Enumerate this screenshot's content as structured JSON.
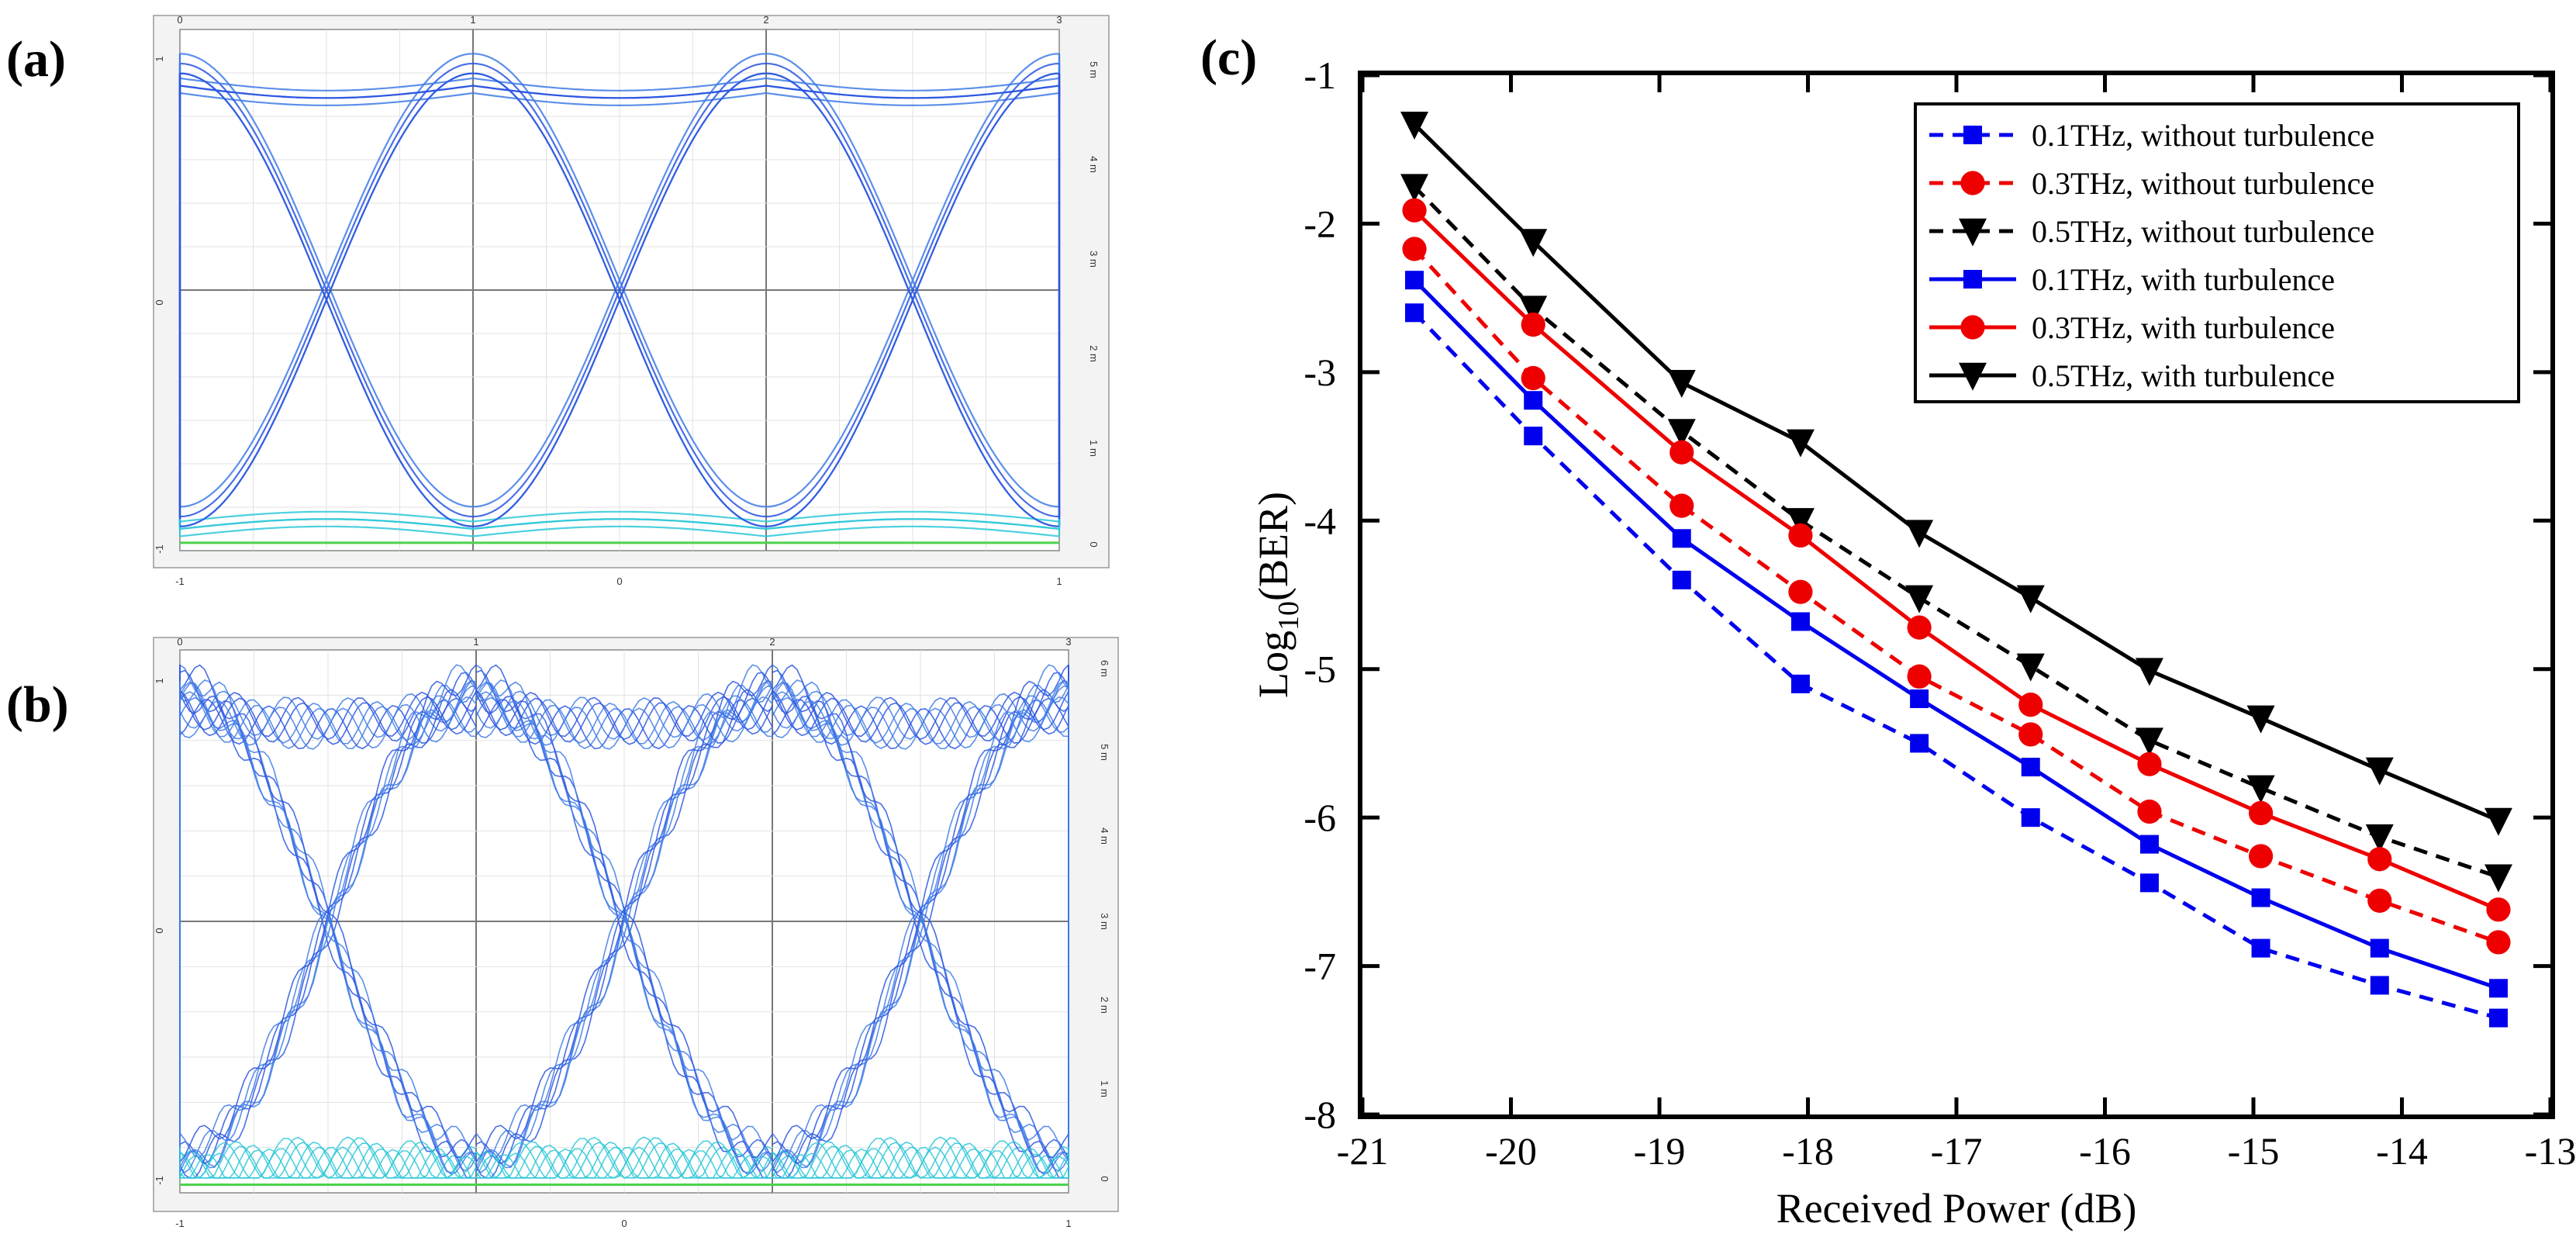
{
  "panels": [
    {
      "label": "(a)",
      "top_ticks": [
        "0",
        "1",
        "2",
        "3"
      ],
      "left_ticks": [
        "1",
        "0",
        "-1"
      ],
      "bottom_ticks": [
        "-1",
        "0",
        "1"
      ],
      "right_ticks": [
        "5 m",
        "4 m",
        "3 m",
        "2 m",
        "1 m",
        "0"
      ]
    },
    {
      "label": "(b)",
      "top_ticks": [
        "0",
        "1",
        "2",
        "3"
      ],
      "left_ticks": [
        "1",
        "0",
        "-1"
      ],
      "bottom_ticks": [
        "-1",
        "0",
        "1"
      ],
      "right_ticks": [
        "6 m",
        "5 m",
        "4 m",
        "3 m",
        "2 m",
        "1 m",
        "0"
      ]
    }
  ],
  "chart_data": {
    "type": "line",
    "panel_label": "(c)",
    "xlabel": "Received Power (dB)",
    "ylabel_main": "Log",
    "ylabel_sub": "10",
    "ylabel_tail": "(BER)",
    "xlim": [
      -21,
      -13
    ],
    "ylim": [
      -8,
      -1
    ],
    "xticks": [
      -21,
      -20,
      -19,
      -18,
      -17,
      -16,
      -15,
      -14,
      -13
    ],
    "yticks": [
      -1,
      -2,
      -3,
      -4,
      -5,
      -6,
      -7,
      -8
    ],
    "x": [
      -20.65,
      -19.85,
      -18.85,
      -18.05,
      -17.25,
      -16.5,
      -15.7,
      -14.95,
      -14.15,
      -13.35
    ],
    "legend_position": "top-right",
    "series": [
      {
        "name": "0.1THz, without turbulence",
        "color": "#0000ee",
        "dash": true,
        "marker": "square",
        "values": [
          -2.6,
          -3.43,
          -4.4,
          -5.1,
          -5.5,
          -6.0,
          -6.44,
          -6.88,
          -7.13,
          -7.35
        ]
      },
      {
        "name": "0.3THz, without turbulence",
        "color": "#ee0000",
        "dash": true,
        "marker": "circle",
        "values": [
          -2.17,
          -3.04,
          -3.9,
          -4.48,
          -5.05,
          -5.44,
          -5.96,
          -6.26,
          -6.56,
          -6.84
        ]
      },
      {
        "name": "0.5THz, without turbulence",
        "color": "#000000",
        "dash": true,
        "marker": "triangle",
        "values": [
          -1.75,
          -2.57,
          -3.4,
          -4.0,
          -4.52,
          -4.98,
          -5.48,
          -5.8,
          -6.13,
          -6.4
        ]
      },
      {
        "name": "0.1THz, with turbulence",
        "color": "#0000ee",
        "dash": false,
        "marker": "square",
        "values": [
          -2.38,
          -3.19,
          -4.12,
          -4.68,
          -5.2,
          -5.66,
          -6.18,
          -6.54,
          -6.88,
          -7.15
        ]
      },
      {
        "name": "0.3THz, with turbulence",
        "color": "#ee0000",
        "dash": false,
        "marker": "circle",
        "values": [
          -1.91,
          -2.68,
          -3.54,
          -4.1,
          -4.72,
          -5.24,
          -5.64,
          -5.97,
          -6.28,
          -6.62
        ]
      },
      {
        "name": "0.5THz, with turbulence",
        "color": "#000000",
        "dash": false,
        "marker": "triangle",
        "values": [
          -1.33,
          -2.12,
          -3.07,
          -3.47,
          -4.08,
          -4.52,
          -5.01,
          -5.33,
          -5.68,
          -6.02
        ]
      }
    ]
  }
}
